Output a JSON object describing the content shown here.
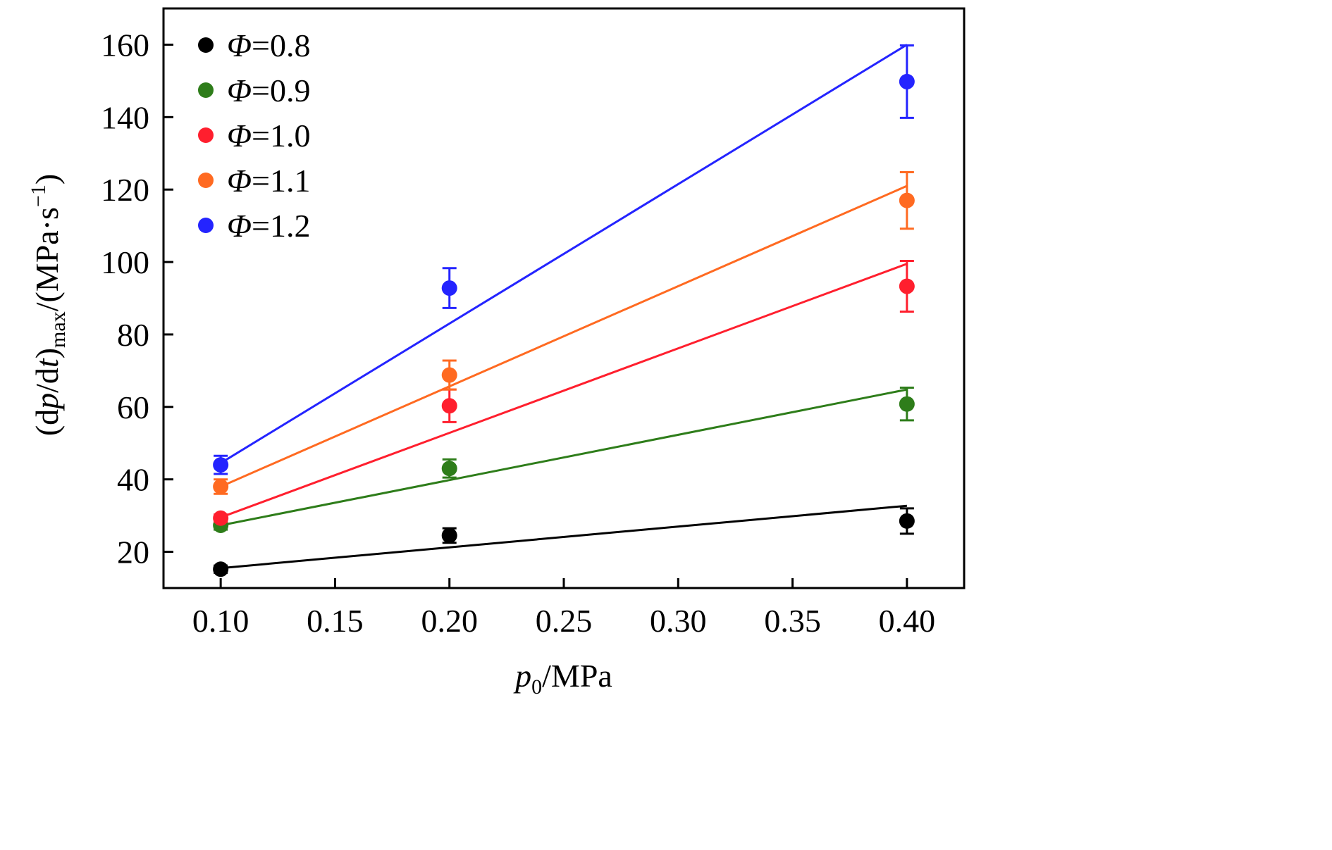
{
  "chart_data": {
    "type": "scatter",
    "xlabel": "p0/MPa",
    "ylabel": "(dp/dt)max/(MPa·s−1)",
    "xlim": [
      0.075,
      0.425
    ],
    "ylim": [
      10,
      170
    ],
    "x_ticks": [
      0.1,
      0.15,
      0.2,
      0.25,
      0.3,
      0.35,
      0.4
    ],
    "y_ticks": [
      20,
      40,
      60,
      80,
      100,
      120,
      140,
      160
    ],
    "x_tick_labels": [
      "0.10",
      "0.15",
      "0.20",
      "0.25",
      "0.30",
      "0.35",
      "0.40"
    ],
    "y_tick_labels": [
      "20",
      "40",
      "60",
      "80",
      "100",
      "120",
      "140",
      "160"
    ],
    "legend_position": "top-left",
    "grid": false,
    "series": [
      {
        "name": "Φ=0.8",
        "color": "#000000",
        "x": [
          0.1,
          0.2,
          0.4
        ],
        "y": [
          15.2,
          24.5,
          28.5
        ],
        "error": [
          1.0,
          2.0,
          3.5
        ],
        "fit": [
          [
            0.1,
            15.5
          ],
          [
            0.4,
            32.7
          ]
        ]
      },
      {
        "name": "Φ=0.9",
        "color": "#2e7d1a",
        "x": [
          0.1,
          0.2,
          0.4
        ],
        "y": [
          27.3,
          43.0,
          60.8
        ],
        "error": [
          1.2,
          2.5,
          4.5
        ],
        "fit": [
          [
            0.1,
            27.3
          ],
          [
            0.4,
            64.8
          ]
        ]
      },
      {
        "name": "Φ=1.0",
        "color": "#ff1f2e",
        "x": [
          0.1,
          0.2,
          0.4
        ],
        "y": [
          29.3,
          60.3,
          93.3
        ],
        "error": [
          1.0,
          4.5,
          7.0
        ],
        "fit": [
          [
            0.1,
            29.5
          ],
          [
            0.4,
            99.5
          ]
        ]
      },
      {
        "name": "Φ=1.1",
        "color": "#ff6a21",
        "x": [
          0.1,
          0.2,
          0.4
        ],
        "y": [
          38.0,
          68.8,
          117.0
        ],
        "error": [
          2.0,
          4.0,
          7.8
        ],
        "fit": [
          [
            0.1,
            38.0
          ],
          [
            0.4,
            121.0
          ]
        ]
      },
      {
        "name": "Φ=1.2",
        "color": "#2424ff",
        "x": [
          0.1,
          0.2,
          0.4
        ],
        "y": [
          44.0,
          92.8,
          149.8
        ],
        "error": [
          2.5,
          5.5,
          10.0
        ],
        "fit": [
          [
            0.1,
            44.5
          ],
          [
            0.4,
            160.0
          ]
        ]
      }
    ]
  }
}
